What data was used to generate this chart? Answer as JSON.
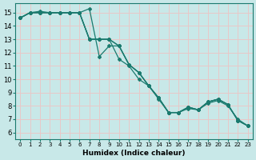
{
  "xlabel": "Humidex (Indice chaleur)",
  "bg_color": "#c8e8e8",
  "grid_color_major": "#e8c8c8",
  "line_color": "#1a7a6e",
  "xlim": [
    -0.5,
    23.5
  ],
  "ylim": [
    5.5,
    15.7
  ],
  "xticks": [
    0,
    1,
    2,
    3,
    4,
    5,
    6,
    7,
    8,
    9,
    10,
    11,
    12,
    13,
    14,
    15,
    16,
    17,
    18,
    19,
    20,
    21,
    22,
    23
  ],
  "yticks": [
    6,
    7,
    8,
    9,
    10,
    11,
    12,
    13,
    14,
    15
  ],
  "series": [
    [
      14.6,
      15.0,
      15.0,
      15.0,
      15.0,
      15.0,
      15.0,
      15.3,
      11.7,
      12.5,
      12.5,
      11.1,
      10.5,
      9.5,
      8.6,
      7.5,
      7.5,
      7.9,
      7.7,
      8.3,
      8.5,
      8.1,
      6.9,
      6.5
    ],
    [
      14.6,
      15.0,
      15.1,
      15.0,
      15.0,
      15.0,
      15.0,
      13.0,
      13.0,
      13.0,
      12.5,
      11.1,
      10.5,
      9.5,
      8.6,
      7.5,
      7.5,
      7.9,
      7.7,
      8.3,
      8.5,
      8.1,
      6.9,
      6.5
    ],
    [
      14.6,
      15.0,
      15.0,
      15.0,
      15.0,
      15.0,
      15.0,
      13.0,
      13.0,
      13.0,
      12.5,
      11.1,
      10.5,
      9.5,
      8.6,
      7.5,
      7.5,
      7.9,
      7.7,
      8.3,
      8.5,
      8.1,
      6.9,
      6.5
    ],
    [
      14.6,
      15.0,
      15.0,
      15.0,
      15.0,
      15.0,
      15.0,
      13.0,
      13.0,
      13.0,
      11.5,
      11.0,
      10.0,
      9.5,
      8.5,
      7.5,
      7.5,
      7.8,
      7.7,
      8.2,
      8.4,
      8.0,
      7.0,
      6.5
    ]
  ]
}
